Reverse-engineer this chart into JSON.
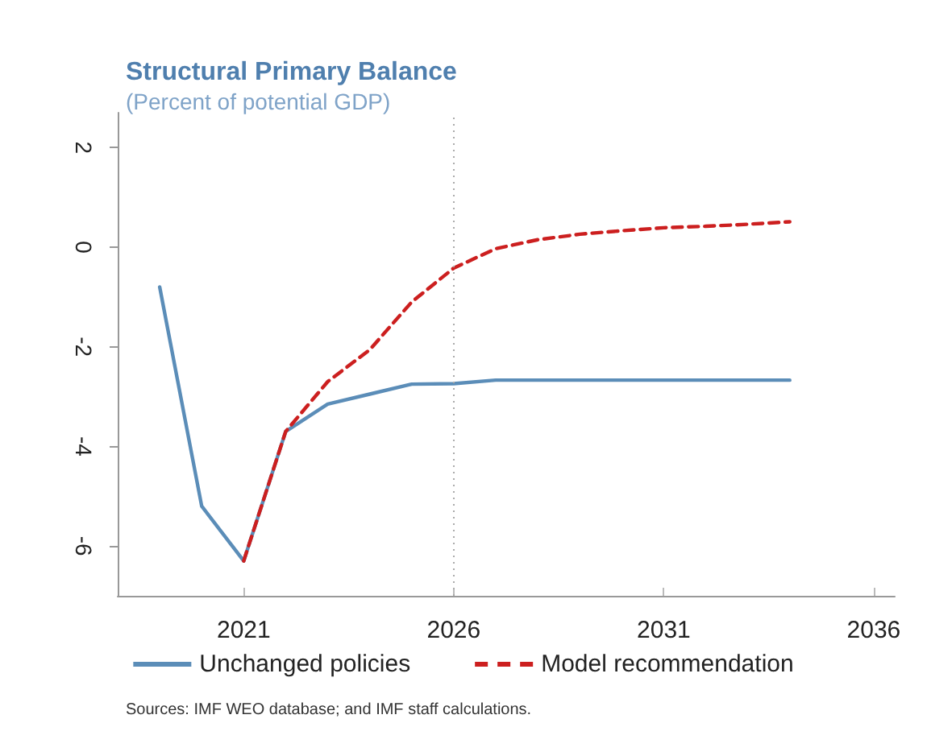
{
  "chart_data": {
    "type": "line",
    "title": "Structural Primary Balance",
    "subtitle": "(Percent of potential GDP)",
    "x": [
      2019,
      2020,
      2021,
      2022,
      2023,
      2024,
      2025,
      2026,
      2027,
      2028,
      2029,
      2030,
      2031,
      2032,
      2033,
      2034
    ],
    "series": [
      {
        "name": "Unchanged policies",
        "color": "#5b8db8",
        "line_style": "solid",
        "values": [
          -0.8,
          -5.2,
          -6.3,
          -3.7,
          -3.15,
          -2.95,
          -2.75,
          -2.74,
          -2.67,
          -2.67,
          -2.67,
          -2.67,
          -2.67,
          -2.67,
          -2.67,
          -2.67
        ]
      },
      {
        "name": "Model recommendation",
        "color": "#cc1f1f",
        "line_style": "dashed",
        "values": [
          null,
          null,
          -6.3,
          -3.7,
          -2.7,
          -2.06,
          -1.1,
          -0.42,
          -0.03,
          0.15,
          0.26,
          0.33,
          0.39,
          0.42,
          0.46,
          0.51
        ]
      }
    ],
    "xlim": [
      2018,
      2036.5
    ],
    "xticks": [
      2021,
      2026,
      2031,
      2036
    ],
    "ylim": [
      -7,
      2.7
    ],
    "yticks": [
      -6,
      -4,
      -2,
      0,
      2
    ],
    "ref_lines": [
      {
        "axis": "x",
        "value": 2026,
        "color": "#aaaaaa",
        "line_style": "dotted"
      }
    ],
    "annotations": [
      "Sources: IMF WEO database; and IMF staff calculations."
    ],
    "grid": false,
    "legend": "bottom",
    "marker": "none"
  }
}
